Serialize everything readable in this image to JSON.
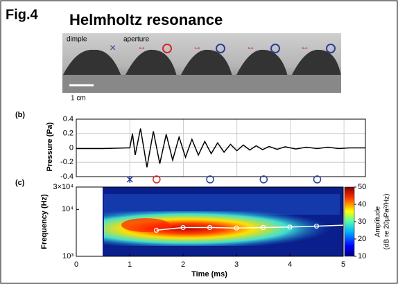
{
  "header": {
    "fig": "Fig.4",
    "title": "Helmholtz resonance"
  },
  "photo": {
    "dimple": "dimple",
    "aperture": "aperture",
    "scale": "1 cm"
  },
  "chart_data": [
    {
      "type": "line",
      "panel": "(b)",
      "ylabel": "Pressure (Pa)",
      "xlim": [
        0,
        5.4
      ],
      "xticks": [
        1,
        2,
        3,
        4,
        5
      ],
      "ylim": [
        -0.4,
        0.4
      ],
      "yticks": [
        -0.4,
        -0.2,
        0,
        0.2,
        0.4
      ],
      "grid": true,
      "series": [
        {
          "color": "#000000",
          "x": [
            0,
            0.5,
            0.95,
            1.0,
            1.05,
            1.1,
            1.2,
            1.32,
            1.44,
            1.56,
            1.68,
            1.8,
            1.92,
            2.04,
            2.16,
            2.28,
            2.4,
            2.52,
            2.64,
            2.76,
            2.88,
            3.0,
            3.12,
            3.24,
            3.36,
            3.48,
            3.6,
            3.75,
            3.9,
            4.1,
            4.3,
            4.5,
            4.7,
            4.9,
            5.1,
            5.4
          ],
          "values": [
            -0.01,
            -0.01,
            0,
            0,
            0.2,
            -0.1,
            0.27,
            -0.27,
            0.23,
            -0.22,
            0.19,
            -0.17,
            0.15,
            -0.13,
            0.12,
            -0.1,
            0.09,
            -0.08,
            0.07,
            -0.06,
            0.05,
            -0.04,
            0.04,
            -0.03,
            0.03,
            -0.025,
            0.02,
            -0.02,
            0.015,
            -0.015,
            0.01,
            -0.01,
            0.01,
            -0.01,
            0,
            0
          ]
        }
      ],
      "markers": [
        {
          "x": 1,
          "shape": "star",
          "color": "#2b3f9c"
        },
        {
          "x": 1.5,
          "shape": "circle",
          "color": "#d62728"
        },
        {
          "x": 2.5,
          "shape": "circle",
          "color": "#2b3f9c"
        },
        {
          "x": 3.5,
          "shape": "circle",
          "color": "#2b3f9c"
        },
        {
          "x": 4.5,
          "shape": "circle",
          "color": "#2b3f9c"
        }
      ]
    },
    {
      "type": "spectrogram",
      "panel": "(c)",
      "xlabel": "Time (ms)",
      "ylabel": "Frequency (Hz)",
      "log_y": true,
      "xlim": [
        0,
        5
      ],
      "xticks": [
        0,
        1,
        2,
        3,
        4,
        5
      ],
      "ylim": [
        1000,
        30000
      ],
      "yticks": [
        {
          "value": 1000,
          "label": "10³"
        },
        {
          "value": 10000,
          "label": "10⁴"
        },
        {
          "value": 30000,
          "label": "3×10⁴"
        }
      ],
      "series": [
        {
          "color": "#ffffff",
          "x": [
            1.5,
            2,
            2.5,
            3,
            3.5,
            4,
            4.5,
            5
          ],
          "values": [
            3600,
            4100,
            4100,
            4000,
            4100,
            4200,
            4400,
            4600
          ]
        }
      ],
      "colorbar": {
        "lim": [
          10,
          50
        ],
        "ticks": [
          10,
          20,
          30,
          40,
          50
        ],
        "label": "Amplitude",
        "unit": "(dB re 20μPa²/Hz)"
      }
    }
  ]
}
